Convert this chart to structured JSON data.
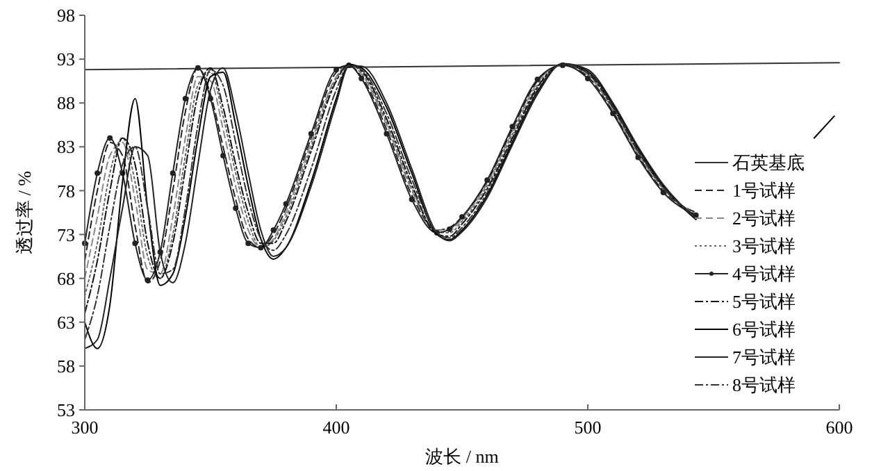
{
  "chart_data": {
    "type": "line",
    "xlabel": "波长 / nm",
    "ylabel": "透过率 / %",
    "x": [
      300,
      305,
      310,
      315,
      320,
      325,
      330,
      335,
      340,
      345,
      350,
      355,
      360,
      365,
      370,
      375,
      380,
      390,
      400,
      405,
      410,
      420,
      430,
      440,
      445,
      450,
      460,
      470,
      480,
      490,
      500,
      510,
      520,
      530,
      543,
      560,
      590,
      598
    ],
    "xlim": [
      300,
      600
    ],
    "ylim": [
      53,
      98
    ],
    "xticks": [
      300,
      400,
      500,
      600
    ],
    "yticks": [
      53,
      58,
      63,
      68,
      73,
      78,
      83,
      88,
      93,
      98
    ],
    "grid": false,
    "legend": "right",
    "series": [
      {
        "name": "石英基底",
        "color": "#333333",
        "line_style": "solid",
        "x": [
          300,
          600
        ],
        "values": [
          91.8,
          92.6
        ]
      },
      {
        "name": "1号试样",
        "color": "#222222",
        "line_style": "dashed",
        "values": [
          70,
          78,
          83.5,
          82,
          74,
          67.5,
          70,
          78,
          87,
          92,
          89,
          83,
          77,
          72.5,
          71.5,
          73,
          76,
          84,
          91.5,
          92.3,
          91,
          85,
          77.5,
          73.5,
          73.8,
          75,
          79,
          85,
          90.5,
          92.3,
          91,
          87,
          82,
          78,
          75.5,
          null,
          null,
          null
        ]
      },
      {
        "name": "2号试样",
        "color": "#888888",
        "line_style": "dashed",
        "values": [
          68,
          75,
          82,
          83.5,
          77,
          69,
          68.5,
          75,
          84,
          91,
          90.5,
          85,
          78.5,
          73.5,
          71.5,
          72.5,
          75.5,
          83.5,
          91,
          92.4,
          91.3,
          85.5,
          78,
          73.5,
          73.5,
          74.8,
          78.8,
          84.7,
          90.3,
          92.4,
          91.2,
          87.2,
          82.2,
          78.2,
          75.3,
          null,
          null,
          null
        ]
      },
      {
        "name": "3号试样",
        "color": "#666666",
        "line_style": "dotted",
        "values": [
          66,
          72,
          80,
          84,
          79,
          70.5,
          68,
          73,
          82,
          90,
          91.5,
          86.5,
          80,
          74.5,
          71.5,
          72.3,
          75,
          83,
          90.8,
          92.4,
          91.5,
          85.8,
          78.3,
          73.3,
          73.2,
          74.5,
          78.5,
          84.4,
          90,
          92.4,
          91.3,
          87.4,
          82.4,
          78.3,
          75.2,
          null,
          null,
          null
        ]
      },
      {
        "name": "4号试样",
        "color": "#222222",
        "line_style": "solid",
        "marker": "circle",
        "values": [
          72,
          80,
          84,
          80,
          72,
          67.8,
          71,
          80,
          88.5,
          92,
          88.5,
          82,
          76,
          72,
          71.5,
          73.5,
          76.5,
          84.5,
          91.8,
          92.3,
          90.8,
          84.5,
          77,
          73.2,
          73.6,
          75,
          79.2,
          85.3,
          90.7,
          92.3,
          90.8,
          86.8,
          81.8,
          77.8,
          75.2,
          null,
          null,
          null
        ]
      },
      {
        "name": "5号试样",
        "color": "#111111",
        "line_style": "dashdot",
        "values": [
          64,
          70,
          78,
          84,
          81,
          72,
          68,
          72,
          80.5,
          89,
          92,
          87.5,
          81,
          75.5,
          72,
          72,
          74.5,
          82.5,
          90.5,
          92.4,
          91.7,
          86.2,
          78.7,
          73,
          72.8,
          74.2,
          78.2,
          84,
          89.8,
          92.4,
          91.4,
          87.5,
          82.5,
          78.4,
          75,
          null,
          null,
          null
        ]
      },
      {
        "name": "6号试样",
        "color": "#000000",
        "line_style": "solid",
        "values": [
          63,
          60,
          65,
          79,
          88.5,
          76,
          67.2,
          68.5,
          75,
          84,
          91,
          91.5,
          85.5,
          78.5,
          72.5,
          70.2,
          71.5,
          79,
          88.5,
          92.4,
          92,
          87.5,
          80,
          73,
          72.4,
          73.5,
          77.5,
          83.5,
          89.3,
          92.5,
          91.6,
          87.8,
          82.8,
          78.5,
          74.7,
          null,
          84,
          86.5
        ]
      },
      {
        "name": "7号试样",
        "color": "#222222",
        "line_style": "solid",
        "values": [
          60,
          61,
          68,
          76,
          83,
          82,
          71,
          67.5,
          72,
          81,
          89.5,
          92,
          87,
          80,
          73.5,
          70.5,
          71.5,
          78.5,
          88,
          92.2,
          92.2,
          88,
          80.5,
          73.2,
          72.3,
          73.3,
          77.2,
          83.2,
          89,
          92.5,
          91.8,
          88,
          83,
          78.7,
          74.8,
          null,
          null,
          null
        ]
      },
      {
        "name": "8号试样",
        "color": "#333333",
        "line_style": "dashdot",
        "values": [
          61,
          66,
          74,
          81,
          83,
          76,
          68.5,
          69,
          76,
          85.5,
          91.8,
          90,
          83.5,
          77,
          72.5,
          71.2,
          73,
          80.5,
          89.5,
          92.3,
          91.8,
          86.8,
          79.3,
          73.2,
          72.6,
          73.8,
          77.8,
          83.8,
          89.5,
          92.4,
          91.5,
          87.6,
          82.6,
          78.4,
          74.9,
          null,
          null,
          null
        ]
      }
    ]
  }
}
